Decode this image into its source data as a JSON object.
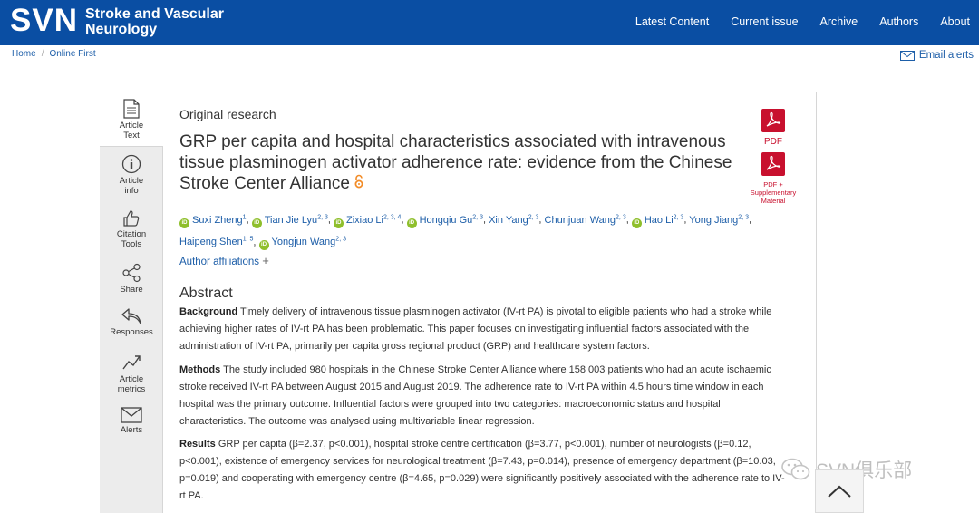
{
  "header": {
    "logo": "SVN",
    "journal_line1": "Stroke and Vascular",
    "journal_line2": "Neurology",
    "nav": [
      "Latest Content",
      "Current issue",
      "Archive",
      "Authors",
      "About"
    ]
  },
  "breadcrumb": {
    "home": "Home",
    "sep": "/",
    "current": "Online First"
  },
  "email_alerts": "Email alerts",
  "sidebar": [
    {
      "line1": "Article",
      "line2": "Text",
      "icon": "document-icon"
    },
    {
      "line1": "Article",
      "line2": "info",
      "icon": "info-icon"
    },
    {
      "line1": "Citation",
      "line2": "Tools",
      "icon": "thumbs-up-icon"
    },
    {
      "line1": "Share",
      "line2": "",
      "icon": "share-icon"
    },
    {
      "line1": "Responses",
      "line2": "",
      "icon": "reply-icon"
    },
    {
      "line1": "Article",
      "line2": "metrics",
      "icon": "metrics-icon"
    },
    {
      "line1": "Alerts",
      "line2": "",
      "icon": "envelope-icon"
    }
  ],
  "article": {
    "type": "Original research",
    "title": "GRP per capita and hospital characteristics associated with intravenous tissue plasminogen activator adherence rate: evidence from the Chinese Stroke Center Alliance",
    "authors": [
      {
        "name": "Suxi Zheng",
        "sup": "1",
        "orcid": true
      },
      {
        "name": "Tian Jie Lyu",
        "sup": "2, 3",
        "orcid": true
      },
      {
        "name": "Zixiao Li",
        "sup": "2, 3, 4",
        "orcid": true
      },
      {
        "name": "Hongqiu Gu",
        "sup": "2, 3",
        "orcid": true
      },
      {
        "name": "Xin Yang",
        "sup": "2, 3",
        "orcid": false
      },
      {
        "name": "Chunjuan Wang",
        "sup": "2, 3",
        "orcid": false
      },
      {
        "name": "Hao Li",
        "sup": "2, 3",
        "orcid": true
      },
      {
        "name": "Yong Jiang",
        "sup": "2, 3",
        "orcid": false
      },
      {
        "name": "Haipeng Shen",
        "sup": "1, 5",
        "orcid": false
      },
      {
        "name": "Yongjun Wang",
        "sup": "2, 3",
        "orcid": true
      }
    ],
    "orcid_badge": "iD",
    "affiliations_label": "Author affiliations",
    "affiliations_toggle": "+",
    "abstract_heading": "Abstract",
    "background_label": "Background",
    "background_text": "Timely delivery of intravenous tissue plasminogen activator (IV-rt PA) is pivotal to eligible patients who had a stroke while achieving higher rates of IV-rt PA has been problematic. This paper focuses on investigating influential factors associated with the administration of IV-rt PA, primarily per capita gross regional product (GRP) and healthcare system factors.",
    "methods_label": "Methods",
    "methods_text": "The study included 980 hospitals in the Chinese Stroke Center Alliance where 158 003 patients who had an acute ischaemic stroke received IV-rt PA between August 2015 and August 2019. The adherence rate to IV-rt PA within 4.5 hours time window in each hospital was the primary outcome. Influential factors were grouped into two categories: macroeconomic status and hospital characteristics. The outcome was analysed using multivariable linear regression.",
    "results_label": "Results",
    "results_text": "GRP per capita (β=2.37, p<0.001), hospital stroke centre certification (β=3.77, p<0.001), number of neurologists (β=0.12, p<0.001), existence of emergency services for neurological treatment (β=7.43, p=0.014), presence of emergency department (β=10.03, p=0.019) and cooperating with emergency centre (β=4.65, p=0.029) were significantly positively associated with the adherence rate to IV-rt PA."
  },
  "pdf_buttons": {
    "pdf_label": "PDF",
    "pdf_supp_line1": "PDF +",
    "pdf_supp_line2": "Supplementary",
    "pdf_supp_line3": "Material"
  },
  "watermark": "SVN俱乐部",
  "colors": {
    "header_bg": "#0a4ea3",
    "link": "#1d5ea8",
    "pdf_red": "#c8102e",
    "orcid_green": "#8fbf2c"
  }
}
